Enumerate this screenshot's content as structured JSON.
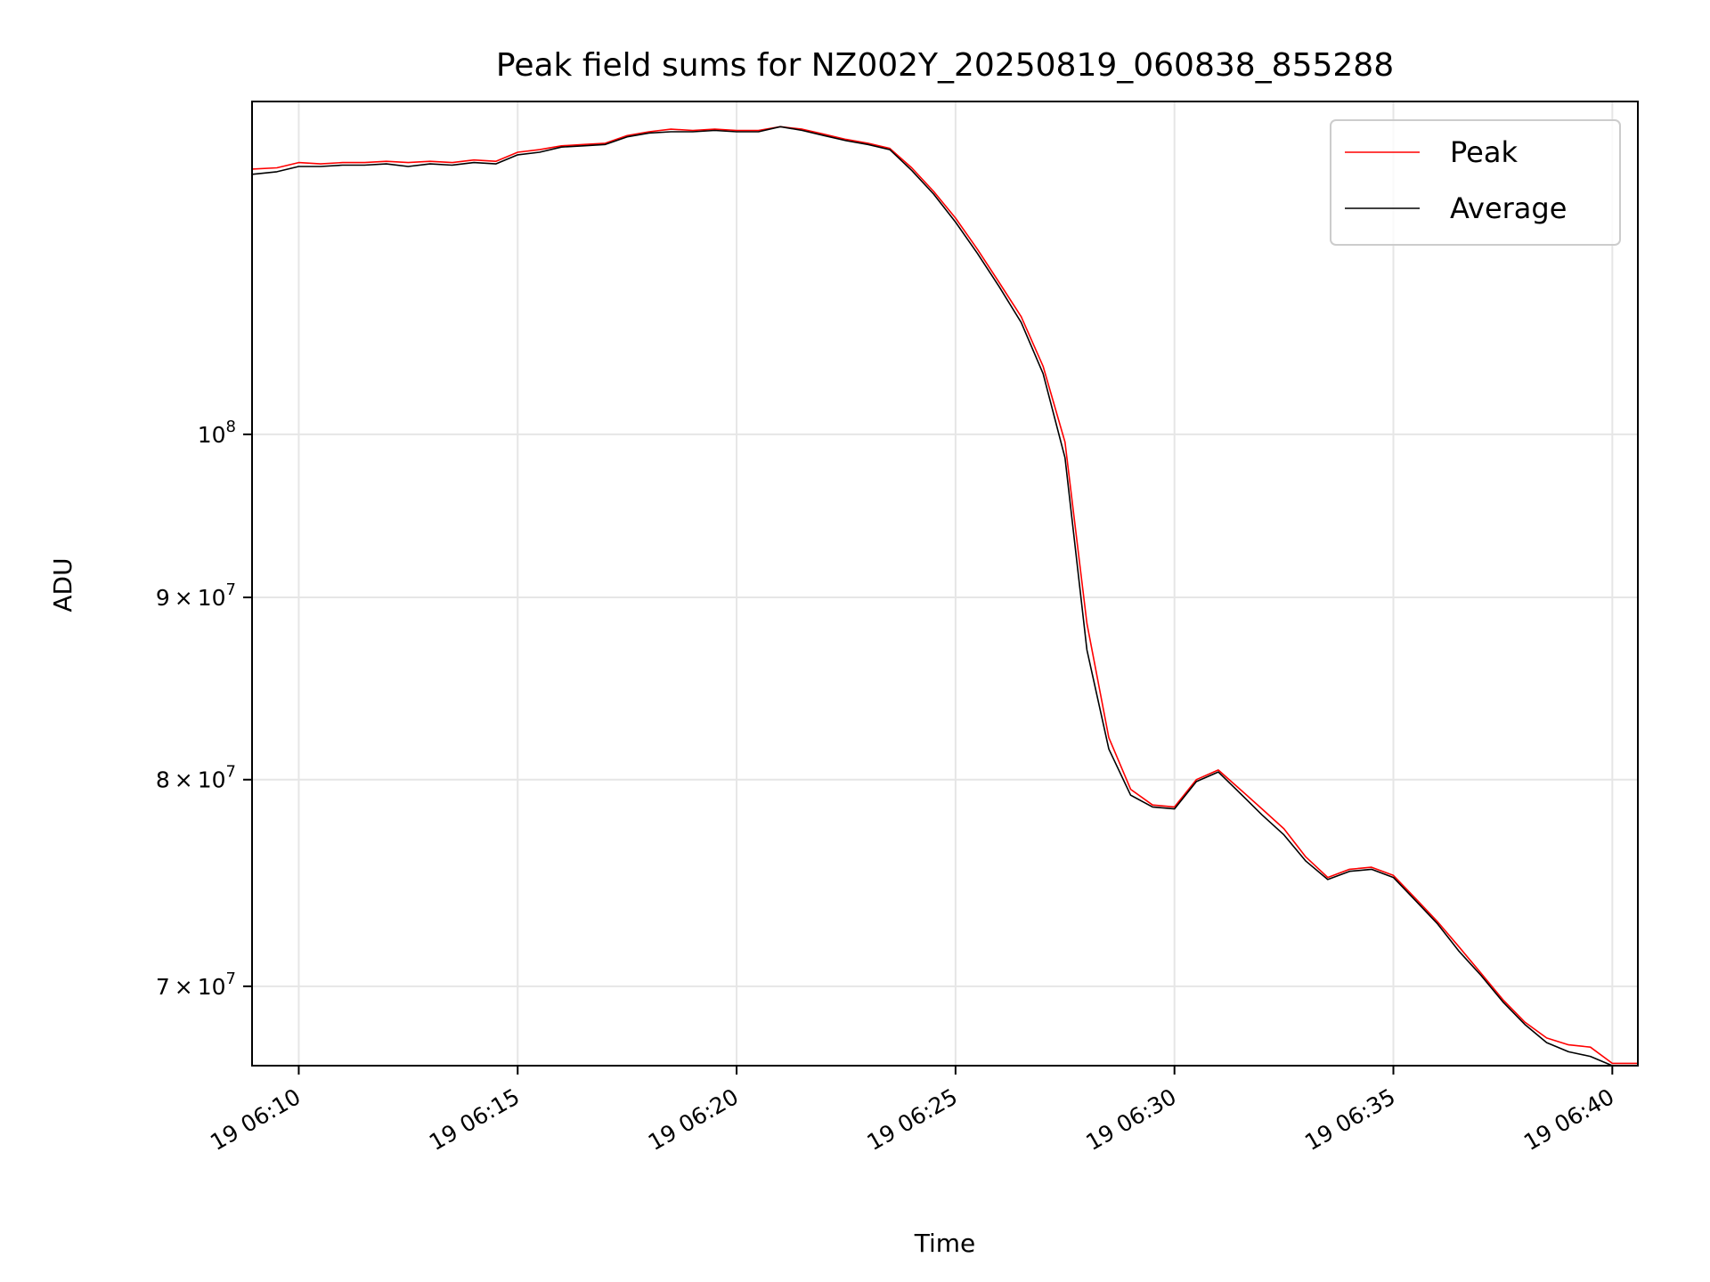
{
  "chart_data": {
    "type": "line",
    "title": "Peak field sums for NZ002Y_20250819_060838_855288",
    "xlabel": "Time",
    "ylabel": "ADU",
    "y_scale": "log",
    "ylim": [
      66500000,
      124000000
    ],
    "xlim": [
      "19 06:08:56",
      "19 06:40:35"
    ],
    "grid": true,
    "legend_position": "upper right",
    "x_ticks": [
      {
        "t": "19 06:10:00",
        "label": "19 06:10"
      },
      {
        "t": "19 06:15:00",
        "label": "19 06:15"
      },
      {
        "t": "19 06:20:00",
        "label": "19 06:20"
      },
      {
        "t": "19 06:25:00",
        "label": "19 06:25"
      },
      {
        "t": "19 06:30:00",
        "label": "19 06:30"
      },
      {
        "t": "19 06:35:00",
        "label": "19 06:35"
      },
      {
        "t": "19 06:40:00",
        "label": "19 06:40"
      }
    ],
    "y_ticks": [
      {
        "v": 70000000,
        "mant": "7",
        "exp": "7"
      },
      {
        "v": 80000000,
        "mant": "8",
        "exp": "7"
      },
      {
        "v": 90000000,
        "mant": "9",
        "exp": "7"
      },
      {
        "v": 100000000,
        "mant": "",
        "exp": "8"
      }
    ],
    "series": [
      {
        "name": "Peak",
        "color": "#ff0000",
        "points": [
          [
            "19 06:08:56",
            118700000.0
          ],
          [
            "19 06:09:30",
            118800000.0
          ],
          [
            "19 06:10:00",
            119200000.0
          ],
          [
            "19 06:10:30",
            119100000.0
          ],
          [
            "19 06:11:00",
            119200000.0
          ],
          [
            "19 06:11:30",
            119200000.0
          ],
          [
            "19 06:12:00",
            119300000.0
          ],
          [
            "19 06:12:30",
            119200000.0
          ],
          [
            "19 06:13:00",
            119300000.0
          ],
          [
            "19 06:13:30",
            119200000.0
          ],
          [
            "19 06:14:00",
            119400000.0
          ],
          [
            "19 06:14:30",
            119300000.0
          ],
          [
            "19 06:15:00",
            120000000.0
          ],
          [
            "19 06:15:30",
            120200000.0
          ],
          [
            "19 06:16:00",
            120500000.0
          ],
          [
            "19 06:16:30",
            120600000.0
          ],
          [
            "19 06:17:00",
            120700000.0
          ],
          [
            "19 06:17:30",
            121300000.0
          ],
          [
            "19 06:18:00",
            121600000.0
          ],
          [
            "19 06:18:30",
            121800000.0
          ],
          [
            "19 06:19:00",
            121700000.0
          ],
          [
            "19 06:19:30",
            121800000.0
          ],
          [
            "19 06:20:00",
            121700000.0
          ],
          [
            "19 06:20:30",
            121700000.0
          ],
          [
            "19 06:21:00",
            122000000.0
          ],
          [
            "19 06:21:30",
            121800000.0
          ],
          [
            "19 06:22:00",
            121400000.0
          ],
          [
            "19 06:22:30",
            121000000.0
          ],
          [
            "19 06:23:00",
            120700000.0
          ],
          [
            "19 06:23:30",
            120300000.0
          ],
          [
            "19 06:24:00",
            118800000.0
          ],
          [
            "19 06:24:30",
            117000000.0
          ],
          [
            "19 06:25:00",
            115000000.0
          ],
          [
            "19 06:25:30",
            112700000.0
          ],
          [
            "19 06:26:00",
            110300000.0
          ],
          [
            "19 06:26:30",
            107900000.0
          ],
          [
            "19 06:27:00",
            104500000.0
          ],
          [
            "19 06:27:30",
            99500000.0
          ],
          [
            "19 06:28:00",
            88500000.0
          ],
          [
            "19 06:28:30",
            82200000.0
          ],
          [
            "19 06:29:00",
            79500000.0
          ],
          [
            "19 06:29:30",
            78700000.0
          ],
          [
            "19 06:30:00",
            78600000.0
          ],
          [
            "19 06:30:30",
            80000000.0
          ],
          [
            "19 06:31:00",
            80500000.0
          ],
          [
            "19 06:31:30",
            79500000.0
          ],
          [
            "19 06:32:00",
            78500000.0
          ],
          [
            "19 06:32:30",
            77500000.0
          ],
          [
            "19 06:33:00",
            76100000.0
          ],
          [
            "19 06:33:30",
            75100000.0
          ],
          [
            "19 06:34:00",
            75500000.0
          ],
          [
            "19 06:34:30",
            75600000.0
          ],
          [
            "19 06:35:00",
            75200000.0
          ],
          [
            "19 06:35:30",
            74100000.0
          ],
          [
            "19 06:36:00",
            73000000.0
          ],
          [
            "19 06:36:30",
            71800000.0
          ],
          [
            "19 06:37:00",
            70600000.0
          ],
          [
            "19 06:37:30",
            69400000.0
          ],
          [
            "19 06:38:00",
            68400000.0
          ],
          [
            "19 06:38:30",
            67700000.0
          ],
          [
            "19 06:39:00",
            67400000.0
          ],
          [
            "19 06:39:30",
            67300000.0
          ],
          [
            "19 06:40:00",
            66600000.0
          ],
          [
            "19 06:40:35",
            66600000.0
          ]
        ]
      },
      {
        "name": "Average",
        "color": "#000000",
        "points": [
          [
            "19 06:08:56",
            118300000.0
          ],
          [
            "19 06:09:30",
            118500000.0
          ],
          [
            "19 06:10:00",
            118900000.0
          ],
          [
            "19 06:10:30",
            118900000.0
          ],
          [
            "19 06:11:00",
            119000000.0
          ],
          [
            "19 06:11:30",
            119000000.0
          ],
          [
            "19 06:12:00",
            119100000.0
          ],
          [
            "19 06:12:30",
            118900000.0
          ],
          [
            "19 06:13:00",
            119100000.0
          ],
          [
            "19 06:13:30",
            119000000.0
          ],
          [
            "19 06:14:00",
            119200000.0
          ],
          [
            "19 06:14:30",
            119100000.0
          ],
          [
            "19 06:15:00",
            119800000.0
          ],
          [
            "19 06:15:30",
            120000000.0
          ],
          [
            "19 06:16:00",
            120400000.0
          ],
          [
            "19 06:16:30",
            120500000.0
          ],
          [
            "19 06:17:00",
            120600000.0
          ],
          [
            "19 06:17:30",
            121200000.0
          ],
          [
            "19 06:18:00",
            121500000.0
          ],
          [
            "19 06:18:30",
            121600000.0
          ],
          [
            "19 06:19:00",
            121600000.0
          ],
          [
            "19 06:19:30",
            121700000.0
          ],
          [
            "19 06:20:00",
            121600000.0
          ],
          [
            "19 06:20:30",
            121600000.0
          ],
          [
            "19 06:21:00",
            122000000.0
          ],
          [
            "19 06:21:30",
            121700000.0
          ],
          [
            "19 06:22:00",
            121300000.0
          ],
          [
            "19 06:22:30",
            120900000.0
          ],
          [
            "19 06:23:00",
            120600000.0
          ],
          [
            "19 06:23:30",
            120200000.0
          ],
          [
            "19 06:24:00",
            118600000.0
          ],
          [
            "19 06:24:30",
            116800000.0
          ],
          [
            "19 06:25:00",
            114700000.0
          ],
          [
            "19 06:25:30",
            112400000.0
          ],
          [
            "19 06:26:00",
            110000000.0
          ],
          [
            "19 06:26:30",
            107500000.0
          ],
          [
            "19 06:27:00",
            104000000.0
          ],
          [
            "19 06:27:30",
            98500000.0
          ],
          [
            "19 06:28:00",
            87000000.0
          ],
          [
            "19 06:28:30",
            81600000.0
          ],
          [
            "19 06:29:00",
            79200000.0
          ],
          [
            "19 06:29:30",
            78600000.0
          ],
          [
            "19 06:30:00",
            78500000.0
          ],
          [
            "19 06:30:30",
            79900000.0
          ],
          [
            "19 06:31:00",
            80400000.0
          ],
          [
            "19 06:31:30",
            79300000.0
          ],
          [
            "19 06:32:00",
            78200000.0
          ],
          [
            "19 06:32:30",
            77200000.0
          ],
          [
            "19 06:33:00",
            75900000.0
          ],
          [
            "19 06:33:30",
            75000000.0
          ],
          [
            "19 06:34:00",
            75400000.0
          ],
          [
            "19 06:34:30",
            75500000.0
          ],
          [
            "19 06:35:00",
            75100000.0
          ],
          [
            "19 06:35:30",
            74000000.0
          ],
          [
            "19 06:36:00",
            72900000.0
          ],
          [
            "19 06:36:30",
            71600000.0
          ],
          [
            "19 06:37:00",
            70500000.0
          ],
          [
            "19 06:37:30",
            69300000.0
          ],
          [
            "19 06:38:00",
            68300000.0
          ],
          [
            "19 06:38:30",
            67500000.0
          ],
          [
            "19 06:39:00",
            67100000.0
          ],
          [
            "19 06:39:30",
            66900000.0
          ],
          [
            "19 06:40:00",
            66500000.0
          ],
          [
            "19 06:40:35",
            66500000.0
          ]
        ]
      }
    ]
  }
}
